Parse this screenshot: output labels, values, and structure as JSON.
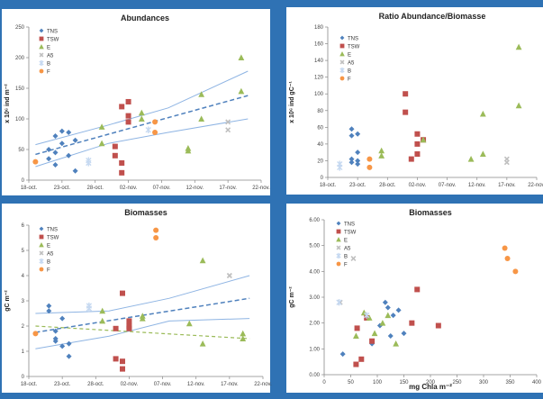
{
  "colors": {
    "background": "#2f72b4",
    "panel": "#ffffff",
    "TNS": "#4f81bd",
    "TSW": "#c0504d",
    "E": "#9bbb59",
    "A5": "#bfbfbf",
    "B": "#c6d9f1",
    "F": "#f79646",
    "trend": "#4f81bd",
    "ci": "#8eb4e3"
  },
  "series_names": [
    "TNS",
    "TSW",
    "E",
    "A5",
    "B",
    "F"
  ],
  "date_ticks": [
    "18-oct.",
    "23-oct.",
    "28-oct.",
    "02-nov.",
    "07-nov.",
    "12-nov.",
    "17-nov.",
    "22-nov."
  ],
  "chart_data": [
    {
      "type": "scatter",
      "title": "Abundances",
      "xlabel": "",
      "ylabel": "x 10⁶ ind m⁻²",
      "xlim": [
        "2009-10-18",
        "2009-11-22"
      ],
      "ylim": [
        0,
        250
      ],
      "yticks": [
        0,
        50,
        100,
        150,
        200,
        250
      ],
      "legend": "top-left",
      "series": [
        {
          "name": "TNS",
          "points": [
            [
              "2009-10-21",
              35
            ],
            [
              "2009-10-21",
              50
            ],
            [
              "2009-10-22",
              72
            ],
            [
              "2009-10-22",
              45
            ],
            [
              "2009-10-22",
              25
            ],
            [
              "2009-10-23",
              80
            ],
            [
              "2009-10-23",
              60
            ],
            [
              "2009-10-24",
              78
            ],
            [
              "2009-10-24",
              40
            ],
            [
              "2009-10-25",
              15
            ],
            [
              "2009-10-25",
              65
            ]
          ]
        },
        {
          "name": "TSW",
          "points": [
            [
              "2009-10-31",
              40
            ],
            [
              "2009-10-31",
              55
            ],
            [
              "2009-11-01",
              28
            ],
            [
              "2009-11-01",
              12
            ],
            [
              "2009-11-01",
              120
            ],
            [
              "2009-11-02",
              128
            ],
            [
              "2009-11-02",
              105
            ],
            [
              "2009-11-02",
              95
            ]
          ]
        },
        {
          "name": "E",
          "points": [
            [
              "2009-10-29",
              87
            ],
            [
              "2009-10-29",
              60
            ],
            [
              "2009-11-04",
              110
            ],
            [
              "2009-11-04",
              100
            ],
            [
              "2009-11-11",
              52
            ],
            [
              "2009-11-11",
              48
            ],
            [
              "2009-11-13",
              140
            ],
            [
              "2009-11-13",
              100
            ],
            [
              "2009-11-19",
              200
            ],
            [
              "2009-11-19",
              145
            ]
          ]
        },
        {
          "name": "A5",
          "points": [
            [
              "2009-11-17",
              95
            ],
            [
              "2009-11-17",
              82
            ]
          ]
        },
        {
          "name": "B",
          "points": [
            [
              "2009-10-27",
              28
            ],
            [
              "2009-10-27",
              32
            ],
            [
              "2009-11-05",
              82
            ]
          ]
        },
        {
          "name": "F",
          "points": [
            [
              "2009-10-19",
              30
            ],
            [
              "2009-11-06",
              95
            ],
            [
              "2009-11-06",
              78
            ]
          ]
        }
      ],
      "trend": [
        [
          "2009-10-19",
          42
        ],
        [
          "2009-11-20",
          138
        ]
      ],
      "ci_upper": [
        [
          "2009-10-19",
          58
        ],
        [
          "2009-10-30",
          90
        ],
        [
          "2009-11-08",
          118
        ],
        [
          "2009-11-20",
          178
        ]
      ],
      "ci_lower": [
        [
          "2009-10-19",
          22
        ],
        [
          "2009-10-30",
          60
        ],
        [
          "2009-11-08",
          78
        ],
        [
          "2009-11-20",
          100
        ]
      ]
    },
    {
      "type": "scatter",
      "title": "Ratio Abundance/Biomasse",
      "xlabel": "",
      "ylabel": "x 10⁶ ind gC⁻¹",
      "xlim": [
        "2009-10-18",
        "2009-11-22"
      ],
      "ylim": [
        0,
        180
      ],
      "yticks": [
        0,
        20,
        40,
        60,
        80,
        100,
        120,
        140,
        160,
        180
      ],
      "legend": "top-left",
      "series": [
        {
          "name": "TNS",
          "points": [
            [
              "2009-10-22",
              58
            ],
            [
              "2009-10-22",
              50
            ],
            [
              "2009-10-22",
              22
            ],
            [
              "2009-10-22",
              18
            ],
            [
              "2009-10-23",
              52
            ],
            [
              "2009-10-23",
              30
            ],
            [
              "2009-10-23",
              20
            ],
            [
              "2009-10-23",
              16
            ]
          ]
        },
        {
          "name": "TSW",
          "points": [
            [
              "2009-10-31",
              100
            ],
            [
              "2009-10-31",
              78
            ],
            [
              "2009-11-01",
              22
            ],
            [
              "2009-11-02",
              52
            ],
            [
              "2009-11-02",
              40
            ],
            [
              "2009-11-02",
              28
            ],
            [
              "2009-11-03",
              45
            ]
          ]
        },
        {
          "name": "E",
          "points": [
            [
              "2009-10-27",
              32
            ],
            [
              "2009-10-27",
              26
            ],
            [
              "2009-11-03",
              45
            ],
            [
              "2009-11-11",
              22
            ],
            [
              "2009-11-13",
              76
            ],
            [
              "2009-11-13",
              28
            ],
            [
              "2009-11-19",
              156
            ],
            [
              "2009-11-19",
              86
            ]
          ]
        },
        {
          "name": "A5",
          "points": [
            [
              "2009-11-17",
              22
            ],
            [
              "2009-11-17",
              18
            ]
          ]
        },
        {
          "name": "B",
          "points": [
            [
              "2009-10-20",
              12
            ],
            [
              "2009-10-20",
              16
            ]
          ]
        },
        {
          "name": "F",
          "points": [
            [
              "2009-10-25",
              22
            ],
            [
              "2009-10-25",
              12
            ]
          ]
        }
      ]
    },
    {
      "type": "scatter",
      "title": "Biomasses",
      "xlabel": "",
      "ylabel": "gC m⁻²",
      "xlim": [
        "2009-10-18",
        "2009-11-22"
      ],
      "ylim": [
        0,
        6
      ],
      "yticks": [
        0,
        1,
        2,
        3,
        4,
        5,
        6
      ],
      "legend": "top-left",
      "series": [
        {
          "name": "TNS",
          "points": [
            [
              "2009-10-21",
              2.8
            ],
            [
              "2009-10-21",
              2.6
            ],
            [
              "2009-10-22",
              1.8
            ],
            [
              "2009-10-22",
              1.5
            ],
            [
              "2009-10-22",
              1.4
            ],
            [
              "2009-10-23",
              2.3
            ],
            [
              "2009-10-23",
              1.2
            ],
            [
              "2009-10-24",
              0.8
            ],
            [
              "2009-10-24",
              1.3
            ]
          ]
        },
        {
          "name": "TSW",
          "points": [
            [
              "2009-10-31",
              1.9
            ],
            [
              "2009-10-31",
              0.7
            ],
            [
              "2009-11-01",
              0.6
            ],
            [
              "2009-11-01",
              3.3
            ],
            [
              "2009-11-01",
              0.3
            ],
            [
              "2009-11-02",
              2.2
            ],
            [
              "2009-11-02",
              2.0
            ],
            [
              "2009-11-02",
              1.9
            ]
          ]
        },
        {
          "name": "E",
          "points": [
            [
              "2009-10-29",
              2.6
            ],
            [
              "2009-10-29",
              2.2
            ],
            [
              "2009-11-04",
              2.4
            ],
            [
              "2009-11-04",
              2.3
            ],
            [
              "2009-11-11",
              2.1
            ],
            [
              "2009-11-13",
              4.6
            ],
            [
              "2009-11-13",
              1.3
            ],
            [
              "2009-11-19",
              1.7
            ],
            [
              "2009-11-19",
              1.5
            ]
          ]
        },
        {
          "name": "A5",
          "points": [
            [
              "2009-11-17",
              4.0
            ],
            [
              "2009-11-17",
              4.0
            ]
          ]
        },
        {
          "name": "B",
          "points": [
            [
              "2009-10-27",
              2.8
            ],
            [
              "2009-10-27",
              2.7
            ]
          ]
        },
        {
          "name": "F",
          "points": [
            [
              "2009-10-19",
              1.7
            ],
            [
              "2009-11-06",
              5.8
            ],
            [
              "2009-11-06",
              5.5
            ]
          ]
        }
      ],
      "trend": [
        [
          "2009-10-19",
          1.75
        ],
        [
          "2009-11-20",
          3.1
        ]
      ],
      "trend2": [
        [
          "2009-10-19",
          2.0
        ],
        [
          "2009-11-20",
          1.5
        ]
      ],
      "ci_upper": [
        [
          "2009-10-19",
          2.5
        ],
        [
          "2009-10-30",
          2.6
        ],
        [
          "2009-11-08",
          3.1
        ],
        [
          "2009-11-20",
          4.0
        ]
      ],
      "ci_lower": [
        [
          "2009-10-19",
          1.1
        ],
        [
          "2009-10-30",
          1.6
        ],
        [
          "2009-11-08",
          2.2
        ],
        [
          "2009-11-20",
          2.3
        ]
      ]
    },
    {
      "type": "scatter",
      "title": "Biomasses",
      "xlabel": "mg Chla m⁻²",
      "ylabel": "gC m⁻²",
      "xlim": [
        0,
        400
      ],
      "ylim": [
        0,
        6
      ],
      "xticks": [
        0,
        50,
        100,
        150,
        200,
        250,
        300,
        350,
        400
      ],
      "yticks": [
        "0.00",
        "1.00",
        "2.00",
        "3.00",
        "4.00",
        "5.00",
        "6.00"
      ],
      "legend": "top-left",
      "series": [
        {
          "name": "TNS",
          "points": [
            [
              35,
              0.8
            ],
            [
              90,
              1.2
            ],
            [
              105,
              1.9
            ],
            [
              115,
              2.8
            ],
            [
              120,
              2.6
            ],
            [
              125,
              1.5
            ],
            [
              130,
              2.3
            ],
            [
              140,
              2.5
            ],
            [
              150,
              1.6
            ]
          ]
        },
        {
          "name": "TSW",
          "points": [
            [
              60,
              0.4
            ],
            [
              62,
              1.8
            ],
            [
              70,
              0.6
            ],
            [
              80,
              2.2
            ],
            [
              90,
              1.3
            ],
            [
              165,
              2.0
            ],
            [
              175,
              3.3
            ],
            [
              215,
              1.9
            ]
          ]
        },
        {
          "name": "E",
          "points": [
            [
              75,
              2.4
            ],
            [
              85,
              2.2
            ],
            [
              95,
              1.6
            ],
            [
              110,
              2.0
            ],
            [
              120,
              2.3
            ],
            [
              135,
              1.2
            ],
            [
              60,
              1.5
            ]
          ]
        },
        {
          "name": "A5",
          "points": [
            [
              55,
              4.5
            ],
            [
              30,
              2.8
            ]
          ]
        },
        {
          "name": "B",
          "points": [
            [
              28,
              2.8
            ],
            [
              80,
              2.3
            ]
          ]
        },
        {
          "name": "F",
          "points": [
            [
              340,
              4.9
            ],
            [
              345,
              4.5
            ],
            [
              360,
              4.0
            ]
          ]
        }
      ]
    }
  ]
}
